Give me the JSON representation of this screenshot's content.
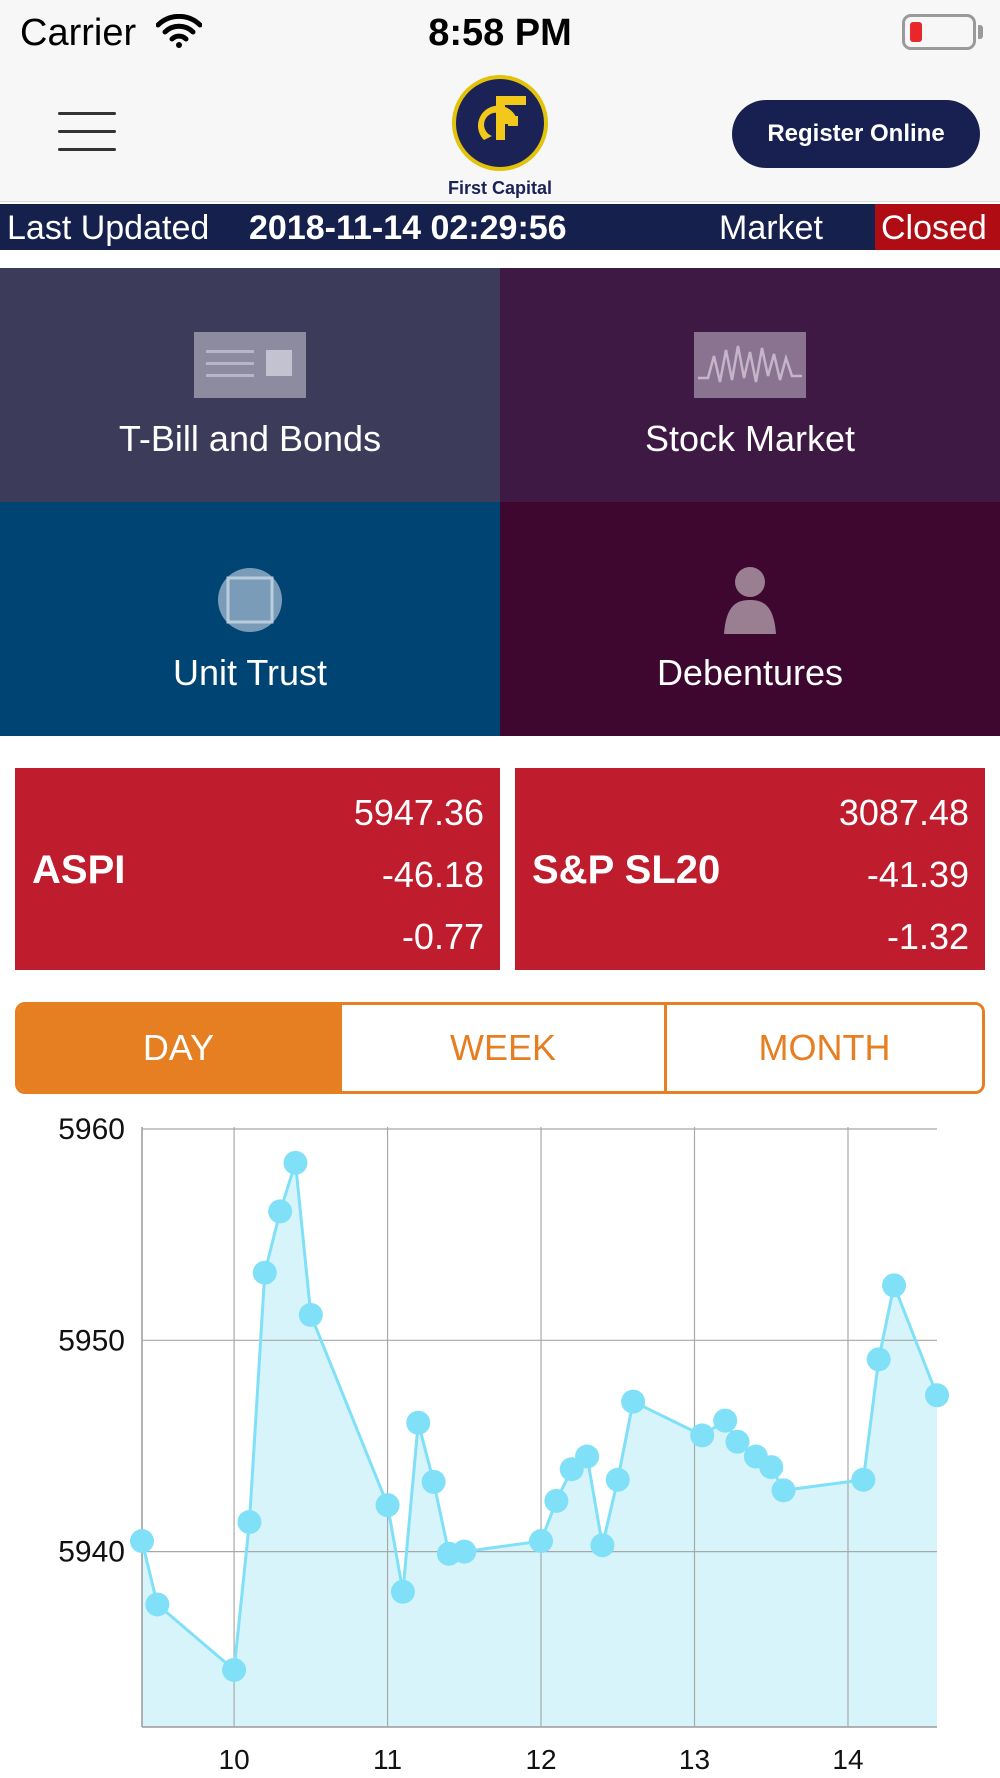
{
  "status_bar": {
    "carrier": "Carrier",
    "time": "8:58 PM"
  },
  "header": {
    "menu_icon": "hamburger-icon",
    "logo_text": "First Capital",
    "register_label": "Register Online"
  },
  "ticker": {
    "label": "Last Updated",
    "timestamp": "2018-11-14 02:29:56",
    "market_label": "Market",
    "market_status": "Closed",
    "status_color": "#b00c14"
  },
  "tiles": [
    {
      "label": "T-Bill and Bonds",
      "icon": "bond-document-icon",
      "color": "#3c3b59"
    },
    {
      "label": "Stock Market",
      "icon": "stock-chart-icon",
      "color": "#3d1944"
    },
    {
      "label": "Unit Trust",
      "icon": "unit-trust-icon",
      "color": "#004473"
    },
    {
      "label": "Debentures",
      "icon": "person-icon",
      "color": "#3e0730"
    }
  ],
  "indices": [
    {
      "name": "ASPI",
      "value": "5947.36",
      "change": "-46.18",
      "percent": "-0.77"
    },
    {
      "name": "S&P SL20",
      "value": "3087.48",
      "change": "-41.39",
      "percent": "-1.32"
    }
  ],
  "period_tabs": {
    "options": [
      "DAY",
      "WEEK",
      "MONTH"
    ],
    "selected": "DAY",
    "accent": "#e67e22"
  },
  "chart_data": {
    "type": "area",
    "x_ticks": [
      10,
      11,
      12,
      13,
      14
    ],
    "y_ticks": [
      5940,
      5950,
      5960
    ],
    "xlim": [
      9.4,
      14.58
    ],
    "ylim": [
      5931.7,
      5960.9
    ],
    "grid": true,
    "line_color": "#7fe0f7",
    "fill_color": "#d8f4fb",
    "points": [
      [
        9.4,
        5940.5
      ],
      [
        9.5,
        5937.5
      ],
      [
        10.0,
        5934.4
      ],
      [
        10.1,
        5941.4
      ],
      [
        10.2,
        5953.2
      ],
      [
        10.3,
        5956.1
      ],
      [
        10.4,
        5958.4
      ],
      [
        10.5,
        5951.2
      ],
      [
        11.0,
        5942.2
      ],
      [
        11.1,
        5938.1
      ],
      [
        11.2,
        5946.1
      ],
      [
        11.3,
        5943.3
      ],
      [
        11.4,
        5939.9
      ],
      [
        11.5,
        5940.0
      ],
      [
        12.0,
        5940.5
      ],
      [
        12.1,
        5942.4
      ],
      [
        12.2,
        5943.9
      ],
      [
        12.3,
        5944.5
      ],
      [
        12.4,
        5940.3
      ],
      [
        12.5,
        5943.4
      ],
      [
        12.6,
        5947.1
      ],
      [
        13.05,
        5945.5
      ],
      [
        13.2,
        5946.2
      ],
      [
        13.28,
        5945.2
      ],
      [
        13.4,
        5944.5
      ],
      [
        13.5,
        5944.0
      ],
      [
        13.58,
        5942.9
      ],
      [
        14.1,
        5943.4
      ],
      [
        14.2,
        5949.1
      ],
      [
        14.3,
        5952.6
      ],
      [
        14.58,
        5947.4
      ]
    ]
  }
}
